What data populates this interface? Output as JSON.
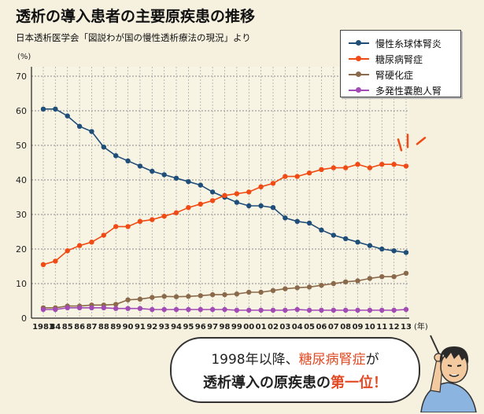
{
  "title": "透析の導入患者の主要原疾患の推移",
  "subtitle": "日本透析医学会「図説わが国の慢性透析療法の現況」より",
  "callout": {
    "line1_prefix": "1998年以降、",
    "line1_highlight": "糖尿病腎症",
    "line1_suffix": "が",
    "line2_prefix": "透析導入の原疾患の",
    "line2_highlight": "第一位！"
  },
  "chart_data": {
    "type": "line",
    "ylabel": "(%)",
    "xlabel": "(年)",
    "ylim": [
      0,
      70
    ],
    "yticks": [
      0,
      10,
      20,
      30,
      40,
      50,
      60,
      70
    ],
    "grid": true,
    "legend_position": "top-right",
    "categories": [
      "1983",
      "84",
      "85",
      "86",
      "87",
      "88",
      "89",
      "90",
      "91",
      "92",
      "93",
      "94",
      "95",
      "96",
      "97",
      "98",
      "99",
      "00",
      "01",
      "02",
      "03",
      "04",
      "05",
      "06",
      "07",
      "08",
      "09",
      "10",
      "11",
      "12",
      "13"
    ],
    "series": [
      {
        "name": "慢性糸球体腎炎",
        "color": "#1f4e79",
        "values": [
          60.5,
          60.5,
          58.5,
          55.5,
          54,
          49.5,
          47,
          45.5,
          44,
          42.5,
          41.5,
          40.5,
          39.5,
          38.5,
          36.5,
          35,
          33.5,
          32.5,
          32.5,
          32,
          29,
          28,
          27.5,
          25.5,
          24,
          23,
          22,
          21,
          20,
          19.5,
          19
        ]
      },
      {
        "name": "糖尿病腎症",
        "color": "#f04b14",
        "values": [
          15.5,
          16.5,
          19.5,
          21,
          22,
          24,
          26.5,
          26.5,
          28,
          28.5,
          29.5,
          30.5,
          32,
          33,
          34,
          35.5,
          36,
          36.5,
          38,
          39,
          41,
          41,
          42,
          43,
          43.5,
          43.5,
          44.5,
          43.5,
          44.5,
          44.5,
          44
        ]
      },
      {
        "name": "腎硬化症",
        "color": "#8a6a4a",
        "values": [
          3,
          3,
          3.5,
          3.5,
          3.8,
          3.8,
          4,
          5.3,
          5.5,
          6,
          6.3,
          6.2,
          6.3,
          6.5,
          6.8,
          6.8,
          7,
          7.5,
          7.5,
          8,
          8.5,
          8.8,
          9,
          9.5,
          10,
          10.5,
          10.8,
          11.5,
          12,
          12,
          13
        ]
      },
      {
        "name": "多発性嚢胞人腎",
        "color": "#a24bb4",
        "values": [
          2.5,
          2.5,
          3,
          3,
          3,
          3,
          2.8,
          2.8,
          2.8,
          2.5,
          2.5,
          2.5,
          2.5,
          2.5,
          2.5,
          2.5,
          2.3,
          2.3,
          2.3,
          2.3,
          2.3,
          2.5,
          2.3,
          2.3,
          2.3,
          2.3,
          2.3,
          2.3,
          2.3,
          2.3,
          2.5
        ]
      }
    ]
  }
}
